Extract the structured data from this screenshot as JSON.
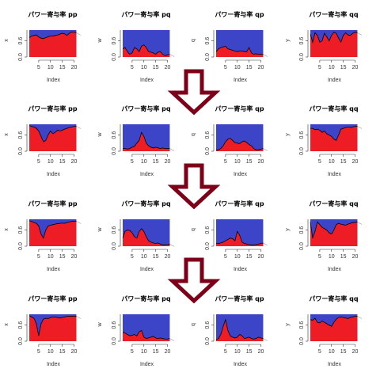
{
  "colors": {
    "top_fill": "#3c44c8",
    "bottom_fill": "#ee1c25",
    "arrow_stroke": "#7d0018",
    "curve": "#000000",
    "overflow_line": "#aaaaaa"
  },
  "chart_data": {
    "type": "area",
    "layout": "4x4 grid of stacked area plots separated by three down arrows",
    "x": [
      1,
      2,
      3,
      4,
      5,
      6,
      7,
      8,
      9,
      10,
      11,
      12,
      13,
      14,
      15,
      16,
      17,
      18,
      19,
      20,
      21
    ],
    "xticks": [
      5,
      10,
      15,
      20
    ],
    "ylim": [
      0,
      1
    ],
    "yticks": [
      0.0,
      0.6
    ],
    "xlabel": "Index",
    "column_ylabels": [
      "x",
      "w",
      "q",
      "y"
    ],
    "column_titles": [
      "パワー寄与率 pp",
      "パワー寄与率 pq",
      "パワー寄与率 qp",
      "パワー寄与率 qq"
    ],
    "rows": [
      {
        "panels": [
          {
            "title": "パワー寄与率 pp",
            "ylabel": "x",
            "values": [
              0.72,
              0.78,
              0.8,
              0.82,
              0.74,
              0.7,
              0.68,
              0.72,
              0.75,
              0.78,
              0.78,
              0.8,
              0.82,
              0.85,
              0.88,
              0.86,
              0.8,
              0.88,
              0.93,
              0.92,
              0.9
            ]
          },
          {
            "title": "パワー寄与率 pq",
            "ylabel": "w",
            "values": [
              0.3,
              0.35,
              0.2,
              0.1,
              0.15,
              0.35,
              0.3,
              0.2,
              0.4,
              0.45,
              0.35,
              0.2,
              0.18,
              0.15,
              0.1,
              0.18,
              0.2,
              0.1,
              0.05,
              0.08,
              0.1
            ]
          },
          {
            "title": "パワー寄与率 qp",
            "ylabel": "q",
            "values": [
              0.2,
              0.3,
              0.35,
              0.38,
              0.4,
              0.3,
              0.28,
              0.25,
              0.22,
              0.2,
              0.22,
              0.22,
              0.2,
              0.2,
              0.35,
              0.15,
              0.1,
              0.12,
              0.1,
              0.1,
              0.1
            ]
          },
          {
            "title": "パワー寄与率 qq",
            "ylabel": "y",
            "values": [
              0.85,
              0.55,
              0.9,
              0.8,
              0.55,
              0.6,
              0.88,
              0.75,
              0.6,
              0.8,
              0.92,
              0.88,
              0.7,
              0.55,
              0.8,
              0.9,
              0.82,
              0.8,
              0.88,
              0.92,
              0.9
            ]
          }
        ]
      },
      {
        "panels": [
          {
            "title": "パワー寄与率 pp",
            "ylabel": "x",
            "values": [
              0.95,
              0.92,
              0.9,
              0.85,
              0.75,
              0.55,
              0.35,
              0.4,
              0.6,
              0.75,
              0.65,
              0.7,
              0.78,
              0.75,
              0.78,
              0.82,
              0.85,
              0.88,
              0.9,
              0.92,
              0.93
            ]
          },
          {
            "title": "パワー寄与率 pq",
            "ylabel": "w",
            "values": [
              0.1,
              0.1,
              0.08,
              0.1,
              0.15,
              0.18,
              0.3,
              0.4,
              0.7,
              0.55,
              0.3,
              0.2,
              0.15,
              0.12,
              0.15,
              0.12,
              0.1,
              0.12,
              0.1,
              0.1,
              0.1
            ]
          },
          {
            "title": "パワー寄与率 qp",
            "ylabel": "q",
            "values": [
              0.05,
              0.05,
              0.1,
              0.2,
              0.35,
              0.45,
              0.48,
              0.4,
              0.32,
              0.3,
              0.28,
              0.35,
              0.38,
              0.32,
              0.25,
              0.2,
              0.1,
              0.05,
              0.05,
              0.08,
              0.1
            ]
          },
          {
            "title": "パワー寄与率 qq",
            "ylabel": "y",
            "values": [
              0.85,
              0.85,
              0.8,
              0.82,
              0.78,
              0.7,
              0.75,
              0.65,
              0.6,
              0.55,
              0.45,
              0.4,
              0.6,
              0.82,
              0.85,
              0.88,
              0.9,
              0.88,
              0.9,
              0.92,
              0.93
            ]
          }
        ]
      },
      {
        "panels": [
          {
            "title": "パワー寄与率 pp",
            "ylabel": "x",
            "values": [
              0.95,
              0.92,
              0.88,
              0.85,
              0.75,
              0.45,
              0.3,
              0.6,
              0.75,
              0.78,
              0.8,
              0.82,
              0.84,
              0.85,
              0.86,
              0.85,
              0.88,
              0.9,
              0.92,
              0.93,
              0.93
            ]
          },
          {
            "title": "パワー寄与率 pq",
            "ylabel": "w",
            "values": [
              0.3,
              0.55,
              0.6,
              0.58,
              0.5,
              0.35,
              0.3,
              0.55,
              0.65,
              0.55,
              0.35,
              0.2,
              0.15,
              0.12,
              0.1,
              0.12,
              0.08,
              0.05,
              0.05,
              0.06,
              0.08
            ]
          },
          {
            "title": "パワー寄与率 qp",
            "ylabel": "q",
            "values": [
              0.1,
              0.1,
              0.12,
              0.15,
              0.2,
              0.25,
              0.3,
              0.28,
              0.2,
              0.55,
              0.4,
              0.15,
              0.1,
              0.08,
              0.06,
              0.05,
              0.05,
              0.06,
              0.08,
              0.1,
              0.12
            ]
          },
          {
            "title": "パワー寄与率 qq",
            "ylabel": "y",
            "values": [
              0.9,
              0.3,
              0.55,
              0.9,
              0.8,
              0.7,
              0.65,
              0.6,
              0.5,
              0.45,
              0.6,
              0.8,
              0.85,
              0.82,
              0.8,
              0.78,
              0.82,
              0.85,
              0.88,
              0.88,
              0.9
            ]
          }
        ]
      },
      {
        "panels": [
          {
            "title": "パワー寄与率 pp",
            "ylabel": "x",
            "values": [
              0.95,
              0.9,
              0.85,
              0.65,
              0.2,
              0.65,
              0.82,
              0.85,
              0.84,
              0.88,
              0.9,
              0.9,
              0.88,
              0.86,
              0.88,
              0.9,
              0.92,
              0.93,
              0.92,
              0.93,
              0.93
            ]
          },
          {
            "title": "パワー寄与率 pq",
            "ylabel": "w",
            "values": [
              0.35,
              0.3,
              0.25,
              0.2,
              0.22,
              0.25,
              0.2,
              0.35,
              0.4,
              0.15,
              0.1,
              0.12,
              0.15,
              0.18,
              0.12,
              0.1,
              0.12,
              0.1,
              0.08,
              0.08,
              0.1
            ]
          },
          {
            "title": "パワー寄与率 qp",
            "ylabel": "q",
            "values": [
              0.05,
              0.1,
              0.25,
              0.55,
              0.8,
              0.4,
              0.2,
              0.15,
              0.12,
              0.15,
              0.25,
              0.2,
              0.1,
              0.12,
              0.15,
              0.1,
              0.08,
              0.1,
              0.15,
              0.12,
              0.1
            ]
          },
          {
            "title": "パワー寄与率 qq",
            "ylabel": "y",
            "values": [
              0.8,
              0.78,
              0.85,
              0.7,
              0.68,
              0.75,
              0.7,
              0.65,
              0.6,
              0.55,
              0.7,
              0.82,
              0.88,
              0.9,
              0.88,
              0.86,
              0.84,
              0.88,
              0.9,
              0.92,
              0.93
            ]
          }
        ]
      }
    ]
  }
}
